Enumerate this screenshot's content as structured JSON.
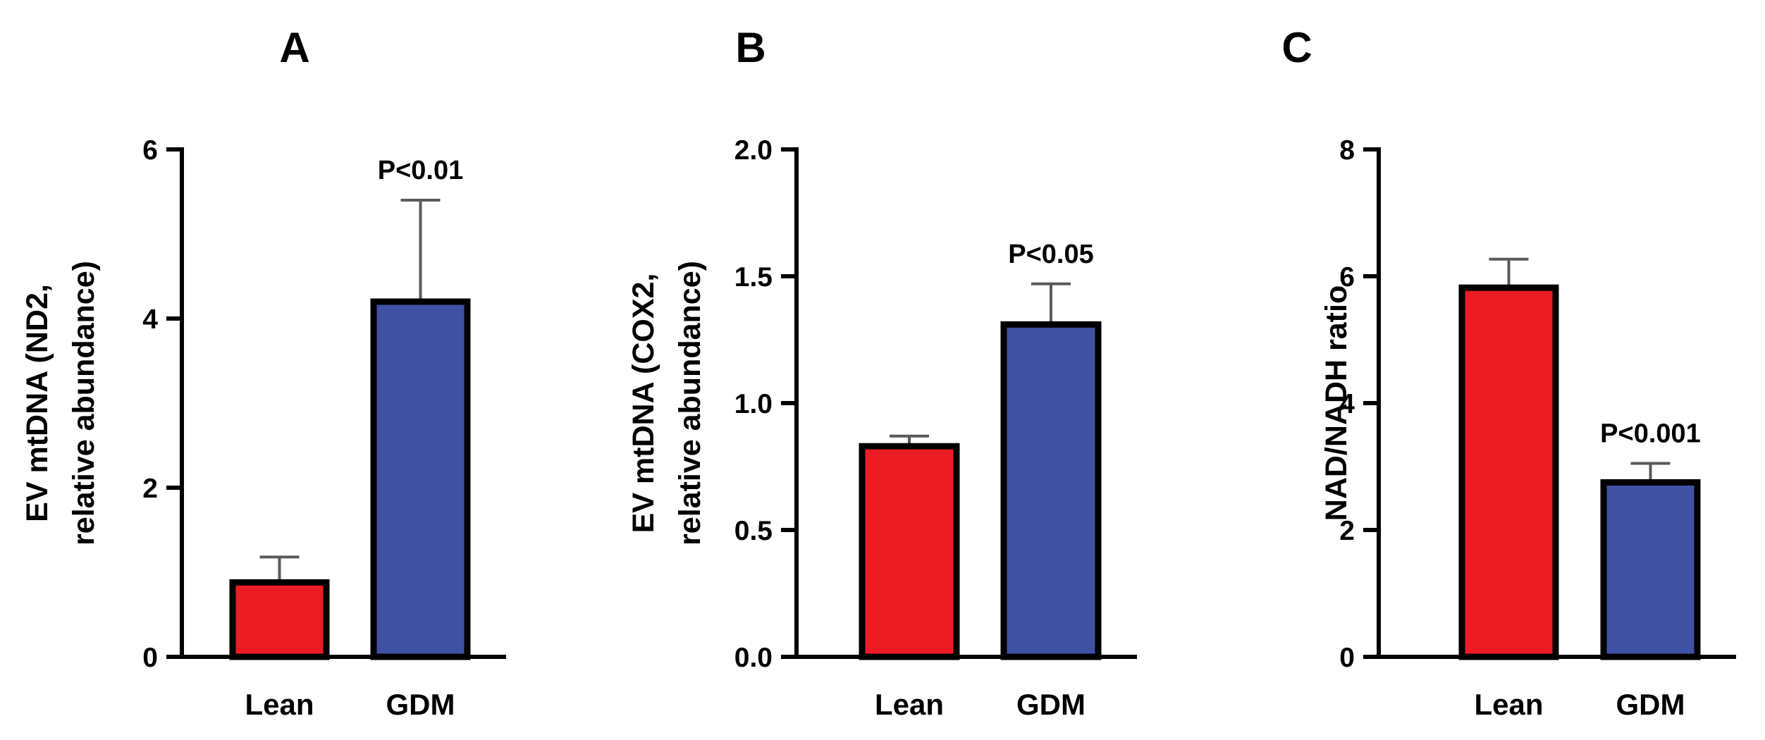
{
  "chart_data": [
    {
      "type": "bar",
      "panel": "A",
      "ylabel_lines": [
        "EV mtDNA (ND2,",
        "relative abundance)"
      ],
      "categories": [
        "Lean",
        "GDM"
      ],
      "values": [
        0.88,
        4.2
      ],
      "errors": [
        0.3,
        1.2
      ],
      "colors": [
        "#ec1c24",
        "#3f51a3"
      ],
      "ylim": [
        0,
        6
      ],
      "yticks": [
        0,
        2,
        4,
        6
      ],
      "ytick_labels": [
        "0",
        "2",
        "4",
        "6"
      ],
      "annotation": "P<0.01",
      "annotation_bar": 1
    },
    {
      "type": "bar",
      "panel": "B",
      "ylabel_lines": [
        "EV mtDNA (COX2,",
        "relative abundance)"
      ],
      "categories": [
        "Lean",
        "GDM"
      ],
      "values": [
        0.83,
        1.31
      ],
      "errors": [
        0.04,
        0.16
      ],
      "colors": [
        "#ec1c24",
        "#3f51a3"
      ],
      "ylim": [
        0,
        2
      ],
      "yticks": [
        0,
        0.5,
        1,
        1.5,
        2
      ],
      "ytick_labels": [
        "0.0",
        "0.5",
        "1.0",
        "1.5",
        "2.0"
      ],
      "annotation": "P<0.05",
      "annotation_bar": 1
    },
    {
      "type": "bar",
      "panel": "C",
      "ylabel_lines": [
        "NAD/NADH ratio"
      ],
      "categories": [
        "Lean",
        "GDM"
      ],
      "values": [
        5.82,
        2.75
      ],
      "errors": [
        0.45,
        0.3
      ],
      "colors": [
        "#ec1c24",
        "#3f51a3"
      ],
      "ylim": [
        0,
        8
      ],
      "yticks": [
        0,
        2,
        4,
        6,
        8
      ],
      "ytick_labels": [
        "0",
        "2",
        "4",
        "6",
        "8"
      ],
      "annotation": "P<0.001",
      "annotation_bar": 1
    }
  ]
}
